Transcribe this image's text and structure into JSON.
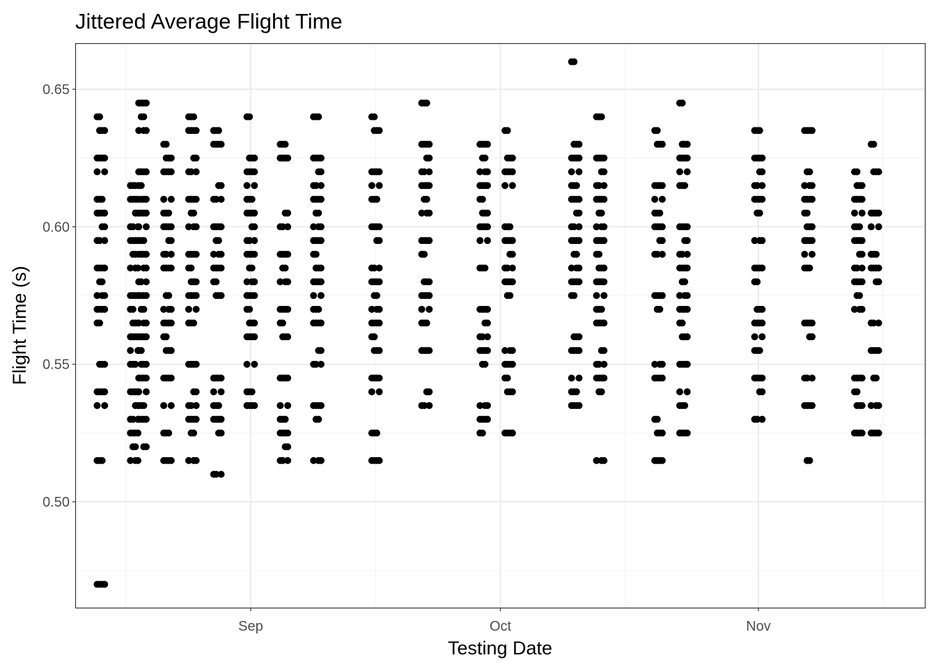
{
  "chart_data": {
    "type": "scatter",
    "title": "Jittered Average Flight Time",
    "xlabel": "Testing Date",
    "ylabel": "Flight Time (s)",
    "x_axis_type": "date",
    "xlim": [
      "2020-08-11",
      "2020-11-21"
    ],
    "ylim": [
      0.4615,
      0.6665
    ],
    "x_ticks": [
      {
        "date": "2020-09-01",
        "label": "Sep"
      },
      {
        "date": "2020-10-01",
        "label": "Oct"
      },
      {
        "date": "2020-11-01",
        "label": "Nov"
      }
    ],
    "y_ticks": [
      {
        "value": 0.5,
        "label": "0.50"
      },
      {
        "value": 0.55,
        "label": "0.55"
      },
      {
        "value": 0.6,
        "label": "0.60"
      },
      {
        "value": 0.65,
        "label": "0.65"
      }
    ],
    "y_minor_ticks": [
      0.475,
      0.525,
      0.575,
      0.625
    ],
    "x_minor_ticks": [
      "2020-08-17",
      "2020-09-16",
      "2020-10-16",
      "2020-11-16"
    ],
    "grid": true,
    "point_color": "#000000",
    "points_by_date": [
      {
        "date": "2020-08-14",
        "values": [
          0.64,
          0.635,
          0.625,
          0.62,
          0.61,
          0.605,
          0.6,
          0.595,
          0.585,
          0.58,
          0.575,
          0.57,
          0.565,
          0.55,
          0.54,
          0.535,
          0.515,
          0.47
        ]
      },
      {
        "date": "2020-08-18",
        "values": [
          0.615,
          0.61,
          0.605,
          0.6,
          0.595,
          0.59,
          0.585,
          0.575,
          0.57,
          0.565,
          0.56,
          0.555,
          0.55,
          0.54,
          0.535,
          0.53,
          0.525,
          0.52,
          0.515
        ]
      },
      {
        "date": "2020-08-19",
        "values": [
          0.645,
          0.64,
          0.635,
          0.62,
          0.615,
          0.61,
          0.605,
          0.6,
          0.595,
          0.59,
          0.585,
          0.58,
          0.575,
          0.57,
          0.565,
          0.56,
          0.555,
          0.55,
          0.545,
          0.54,
          0.535,
          0.53,
          0.52
        ]
      },
      {
        "date": "2020-08-22",
        "values": [
          0.63,
          0.625,
          0.62,
          0.61,
          0.605,
          0.6,
          0.595,
          0.59,
          0.585,
          0.575,
          0.57,
          0.565,
          0.56,
          0.555,
          0.545,
          0.535,
          0.525,
          0.515
        ]
      },
      {
        "date": "2020-08-25",
        "values": [
          0.64,
          0.635,
          0.625,
          0.62,
          0.61,
          0.605,
          0.6,
          0.59,
          0.585,
          0.58,
          0.575,
          0.57,
          0.565,
          0.55,
          0.54,
          0.535,
          0.53,
          0.525,
          0.515
        ]
      },
      {
        "date": "2020-08-28",
        "values": [
          0.635,
          0.63,
          0.615,
          0.61,
          0.6,
          0.595,
          0.59,
          0.585,
          0.58,
          0.575,
          0.545,
          0.54,
          0.535,
          0.53,
          0.525,
          0.51
        ]
      },
      {
        "date": "2020-09-01",
        "values": [
          0.64,
          0.625,
          0.62,
          0.615,
          0.61,
          0.605,
          0.6,
          0.595,
          0.59,
          0.585,
          0.58,
          0.575,
          0.57,
          0.565,
          0.56,
          0.55,
          0.54,
          0.535
        ]
      },
      {
        "date": "2020-09-05",
        "values": [
          0.63,
          0.625,
          0.605,
          0.6,
          0.59,
          0.585,
          0.58,
          0.57,
          0.565,
          0.56,
          0.545,
          0.535,
          0.53,
          0.525,
          0.52,
          0.515
        ]
      },
      {
        "date": "2020-09-09",
        "values": [
          0.64,
          0.625,
          0.62,
          0.615,
          0.61,
          0.605,
          0.6,
          0.595,
          0.59,
          0.585,
          0.58,
          0.575,
          0.57,
          0.565,
          0.555,
          0.55,
          0.535,
          0.53,
          0.515
        ]
      },
      {
        "date": "2020-09-16",
        "values": [
          0.64,
          0.635,
          0.62,
          0.615,
          0.61,
          0.6,
          0.595,
          0.585,
          0.58,
          0.575,
          0.57,
          0.565,
          0.56,
          0.555,
          0.545,
          0.54,
          0.525,
          0.515
        ]
      },
      {
        "date": "2020-09-22",
        "values": [
          0.645,
          0.63,
          0.625,
          0.62,
          0.615,
          0.61,
          0.605,
          0.595,
          0.59,
          0.58,
          0.575,
          0.57,
          0.565,
          0.555,
          0.54,
          0.535
        ]
      },
      {
        "date": "2020-09-29",
        "values": [
          0.63,
          0.625,
          0.62,
          0.615,
          0.61,
          0.605,
          0.6,
          0.595,
          0.585,
          0.57,
          0.565,
          0.56,
          0.555,
          0.55,
          0.535,
          0.53,
          0.525
        ]
      },
      {
        "date": "2020-10-02",
        "values": [
          0.635,
          0.625,
          0.62,
          0.615,
          0.6,
          0.595,
          0.59,
          0.585,
          0.58,
          0.575,
          0.555,
          0.55,
          0.545,
          0.54,
          0.525
        ]
      },
      {
        "date": "2020-10-10",
        "values": [
          0.66,
          0.63,
          0.625,
          0.62,
          0.615,
          0.61,
          0.605,
          0.6,
          0.595,
          0.59,
          0.585,
          0.58,
          0.575,
          0.56,
          0.555,
          0.545,
          0.54,
          0.535
        ]
      },
      {
        "date": "2020-10-13",
        "values": [
          0.64,
          0.625,
          0.62,
          0.615,
          0.61,
          0.605,
          0.6,
          0.595,
          0.59,
          0.585,
          0.58,
          0.575,
          0.57,
          0.565,
          0.555,
          0.55,
          0.545,
          0.54,
          0.515
        ]
      },
      {
        "date": "2020-10-20",
        "values": [
          0.635,
          0.63,
          0.615,
          0.61,
          0.605,
          0.6,
          0.595,
          0.59,
          0.575,
          0.57,
          0.55,
          0.545,
          0.53,
          0.525,
          0.515
        ]
      },
      {
        "date": "2020-10-23",
        "values": [
          0.645,
          0.63,
          0.625,
          0.62,
          0.615,
          0.6,
          0.595,
          0.59,
          0.585,
          0.58,
          0.575,
          0.57,
          0.565,
          0.56,
          0.55,
          0.54,
          0.535,
          0.525
        ]
      },
      {
        "date": "2020-11-01",
        "values": [
          0.635,
          0.625,
          0.62,
          0.615,
          0.61,
          0.605,
          0.595,
          0.585,
          0.58,
          0.57,
          0.565,
          0.56,
          0.555,
          0.545,
          0.54,
          0.53
        ]
      },
      {
        "date": "2020-11-07",
        "values": [
          0.635,
          0.62,
          0.615,
          0.61,
          0.605,
          0.6,
          0.595,
          0.59,
          0.585,
          0.565,
          0.56,
          0.545,
          0.535,
          0.515
        ]
      },
      {
        "date": "2020-11-13",
        "values": [
          0.62,
          0.615,
          0.61,
          0.605,
          0.6,
          0.595,
          0.59,
          0.585,
          0.58,
          0.575,
          0.57,
          0.545,
          0.54,
          0.535,
          0.525
        ]
      },
      {
        "date": "2020-11-15",
        "values": [
          0.63,
          0.62,
          0.605,
          0.6,
          0.59,
          0.585,
          0.58,
          0.565,
          0.555,
          0.545,
          0.535,
          0.525
        ]
      }
    ]
  }
}
